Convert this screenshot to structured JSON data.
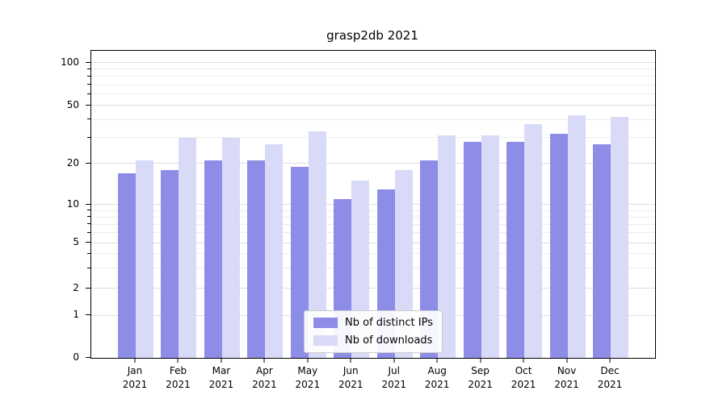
{
  "chart_data": {
    "type": "bar",
    "title": "grasp2db 2021",
    "yscale": "symlog",
    "grid": true,
    "legend_position": "lower center",
    "xlabel": "",
    "ylabel": "",
    "ylim": [
      0,
      110
    ],
    "yticks": [
      0,
      1,
      2,
      5,
      10,
      20,
      50,
      100
    ],
    "categories": [
      "Jan 2021",
      "Feb 2021",
      "Mar 2021",
      "Apr 2021",
      "May 2021",
      "Jun 2021",
      "Jul 2021",
      "Aug 2021",
      "Sep 2021",
      "Oct 2021",
      "Nov 2021",
      "Dec 2021"
    ],
    "series": [
      {
        "name": "Nb of distinct IPs",
        "color": "#8d8de8",
        "values": [
          17,
          18,
          21,
          21,
          19,
          11,
          13,
          21,
          28,
          28,
          32,
          27
        ]
      },
      {
        "name": "Nb of downloads",
        "color": "#d9d9f8",
        "values": [
          21,
          30,
          30,
          27,
          33,
          15,
          18,
          31,
          31,
          37,
          43,
          42
        ]
      }
    ]
  }
}
